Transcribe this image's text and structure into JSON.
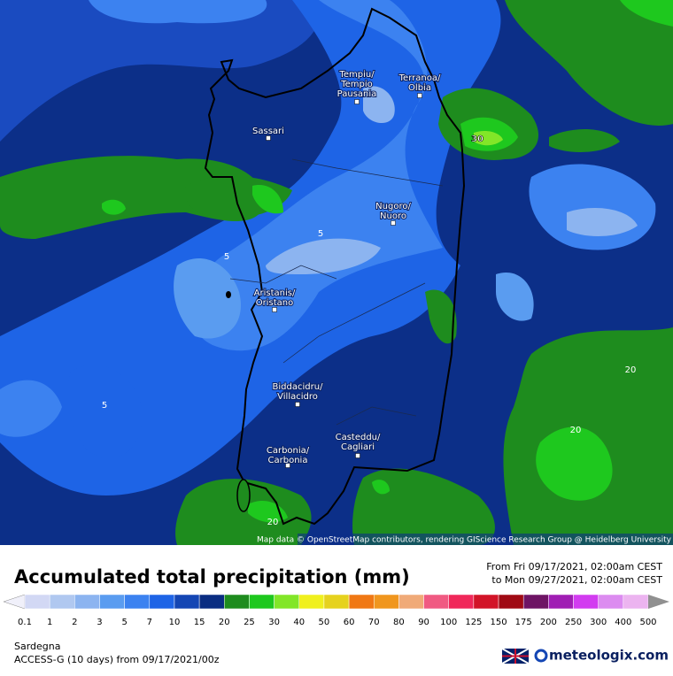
{
  "map": {
    "cities": [
      {
        "label": [
          "Tempiu/",
          "Tempio",
          "Pausania"
        ]
      },
      {
        "label": [
          "Terranoa/",
          "Olbia"
        ]
      },
      {
        "label": [
          "Sassari"
        ]
      },
      {
        "label": [
          "Nugoro/",
          "Nuoro"
        ]
      },
      {
        "label": [
          "Aristanis/",
          "Oristano"
        ]
      },
      {
        "label": [
          "Biddacidru/",
          "Villacidro"
        ]
      },
      {
        "label": [
          "Casteddu/",
          "Cagliari"
        ]
      },
      {
        "label": [
          "Carbonia/",
          "Carbonia"
        ]
      }
    ],
    "contour_labels": [
      "30",
      "5",
      "5",
      "5",
      "20",
      "20",
      "20"
    ],
    "attribution": "Map data © OpenStreetMap contributors, rendering GIScience Research Group @ Heidelberg University"
  },
  "footer": {
    "title": "Accumulated total precipitation (mm)",
    "date_from": "From Fri 09/17/2021, 02:00am CEST",
    "date_to": "to Mon 09/27/2021, 02:00am CEST",
    "colorbar": {
      "labels": [
        0.1,
        1,
        2,
        3,
        5,
        7,
        10,
        15,
        20,
        25,
        30,
        40,
        50,
        60,
        70,
        80,
        90,
        100,
        125,
        150,
        175,
        200,
        250,
        300,
        400,
        500
      ],
      "colors": [
        "#f0f0fa",
        "#d2d8f4",
        "#b0c8f0",
        "#8cb4f0",
        "#5a9cf0",
        "#3c82f0",
        "#1e64e6",
        "#1446b4",
        "#0a2d82",
        "#1e8c1e",
        "#1ec81e",
        "#82e628",
        "#f0f01e",
        "#e6d21e",
        "#f07814",
        "#f0961e",
        "#f0aa78",
        "#f05a82",
        "#f0285a",
        "#d21428",
        "#a00a14",
        "#6e1464",
        "#a01eb4",
        "#d23cf0",
        "#dc8cf0",
        "#ecb4f0",
        "#f4e8fa",
        "#d2d2d2",
        "#909090"
      ]
    },
    "region": "Sardegna",
    "model": "ACCESS-G (10 days) from 09/17/2021/00z",
    "brand": "meteologix.com"
  }
}
